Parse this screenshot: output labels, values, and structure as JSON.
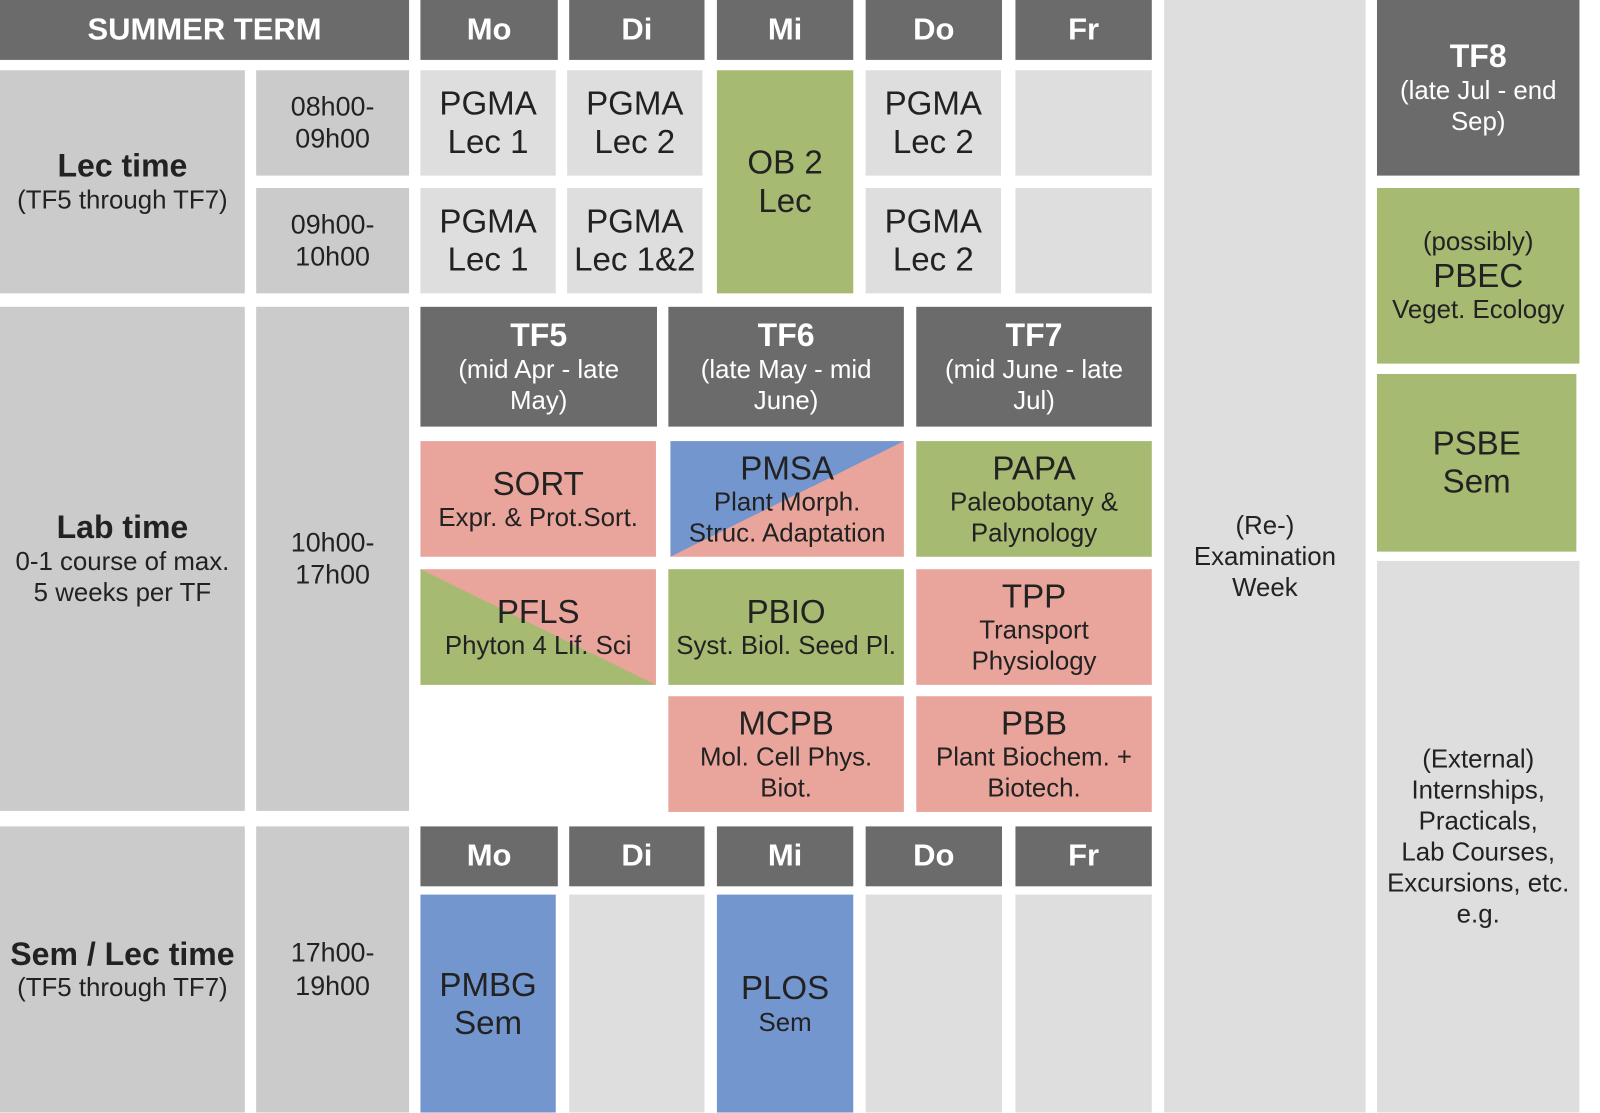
{
  "header": {
    "title": "SUMMER TERM",
    "days": [
      "Mo",
      "Di",
      "Mi",
      "Do",
      "Fr"
    ]
  },
  "cells": [
    {
      "title": "Lec time",
      "text": "(TF5 through TF7)"
    },
    {
      "text": "08h00-\n09h00"
    },
    {
      "text": "09h00-\n10h00"
    },
    {
      "title": "PGMA\nLec 1"
    },
    {
      "title": "PGMA\nLec 2"
    },
    {
      "title": "OB 2\nLec"
    },
    {
      "title": "PGMA\nLec 2"
    },
    {
      "title": "PGMA\nLec 1"
    },
    {
      "title": "PGMA\nLec 1&2"
    },
    {
      "title": "PGMA\nLec 2"
    },
    {
      "text": "(Re-)\nExamination\nWeek"
    },
    {
      "title": "TF8",
      "text": "(late Jul - end\nSep)"
    },
    {
      "pre": "(possibly)",
      "title": "PBEC",
      "text": "Veget. Ecology"
    },
    {
      "title": "PSBE\nSem"
    },
    {
      "text": "(External)\nInternships,\nPracticals,\nLab Courses,\nExcursions, etc.\ne.g."
    },
    {
      "title": "Lab time",
      "text": "0-1 course of max.\n5 weeks per TF"
    },
    {
      "text": "10h00-\n17h00"
    },
    {
      "title": "TF5",
      "text": "(mid Apr - late\nMay)"
    },
    {
      "title": "TF6",
      "text": "(late May - mid\nJune)"
    },
    {
      "title": "TF7",
      "text": "(mid June - late\nJul)"
    },
    {
      "title": "SORT",
      "text": "Expr. & Prot.Sort."
    },
    {
      "title": "PMSA",
      "text": "Plant Morph.\nStruc. Adaptation"
    },
    {
      "title": "PAPA",
      "text": "Paleobotany &\nPalynology"
    },
    {
      "title": "PFLS",
      "text": "Phyton 4 Lif. Sci"
    },
    {
      "title": "PBIO",
      "text": "Syst. Biol. Seed Pl."
    },
    {
      "title": "TPP",
      "text": "Transport\nPhysiology"
    },
    {
      "title": "MCPB",
      "text": "Mol. Cell Phys.\nBiot."
    },
    {
      "title": "PBB",
      "text": "Plant Biochem. +\nBiotech."
    },
    {
      "title": "Sem / Lec time",
      "text": "(TF5 through TF7)"
    },
    {
      "text": "17h00-\n19h00"
    },
    {
      "title": "PMBG\nSem"
    },
    {
      "title": "PLOS",
      "text": "Sem"
    }
  ]
}
